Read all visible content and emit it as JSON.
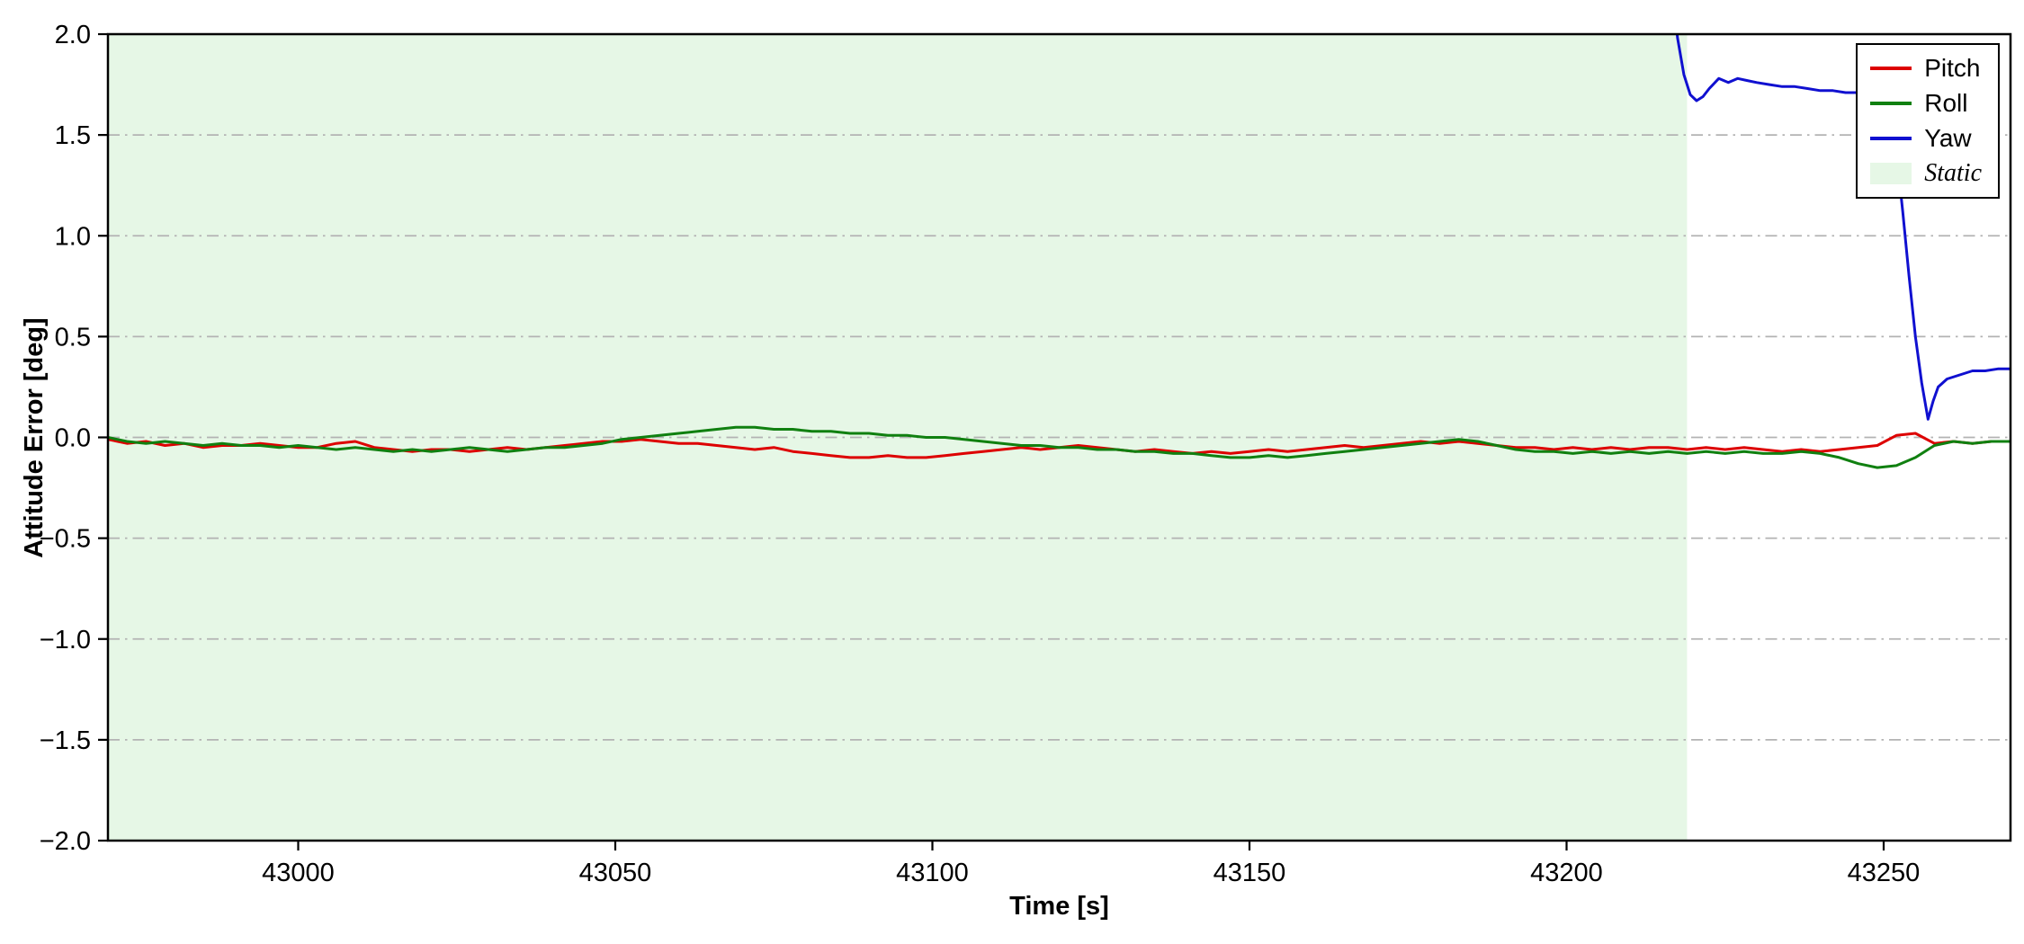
{
  "chart_data": {
    "type": "line",
    "title": "",
    "xlabel": "Time [s]",
    "ylabel": "Attitude Error [deg]",
    "xlim": [
      42970,
      43270
    ],
    "ylim": [
      -2.0,
      2.0
    ],
    "xticks": [
      43000,
      43050,
      43100,
      43150,
      43200,
      43250
    ],
    "yticks": [
      -2.0,
      -1.5,
      -1.0,
      -0.5,
      0.0,
      0.5,
      1.0,
      1.5,
      2.0
    ],
    "grid": {
      "axis": "y",
      "style": "dash-dot",
      "color": "#b3b3b3"
    },
    "legend_position": "upper right",
    "regions": [
      {
        "label": "Static",
        "x0": 42970,
        "x1": 43219,
        "color": "#e6f7e6"
      }
    ],
    "series": [
      {
        "name": "Pitch",
        "color": "#dd0000",
        "points": [
          [
            42970,
            -0.01
          ],
          [
            42973,
            -0.03
          ],
          [
            42976,
            -0.02
          ],
          [
            42979,
            -0.04
          ],
          [
            42982,
            -0.03
          ],
          [
            42985,
            -0.05
          ],
          [
            42988,
            -0.04
          ],
          [
            42991,
            -0.04
          ],
          [
            42994,
            -0.03
          ],
          [
            42997,
            -0.04
          ],
          [
            43000,
            -0.05
          ],
          [
            43003,
            -0.05
          ],
          [
            43006,
            -0.03
          ],
          [
            43009,
            -0.02
          ],
          [
            43012,
            -0.05
          ],
          [
            43015,
            -0.06
          ],
          [
            43018,
            -0.07
          ],
          [
            43021,
            -0.06
          ],
          [
            43024,
            -0.06
          ],
          [
            43027,
            -0.07
          ],
          [
            43030,
            -0.06
          ],
          [
            43033,
            -0.05
          ],
          [
            43036,
            -0.06
          ],
          [
            43039,
            -0.05
          ],
          [
            43042,
            -0.04
          ],
          [
            43045,
            -0.03
          ],
          [
            43048,
            -0.02
          ],
          [
            43051,
            -0.02
          ],
          [
            43054,
            -0.01
          ],
          [
            43057,
            -0.02
          ],
          [
            43060,
            -0.03
          ],
          [
            43063,
            -0.03
          ],
          [
            43066,
            -0.04
          ],
          [
            43069,
            -0.05
          ],
          [
            43072,
            -0.06
          ],
          [
            43075,
            -0.05
          ],
          [
            43078,
            -0.07
          ],
          [
            43081,
            -0.08
          ],
          [
            43084,
            -0.09
          ],
          [
            43087,
            -0.1
          ],
          [
            43090,
            -0.1
          ],
          [
            43093,
            -0.09
          ],
          [
            43096,
            -0.1
          ],
          [
            43099,
            -0.1
          ],
          [
            43102,
            -0.09
          ],
          [
            43105,
            -0.08
          ],
          [
            43108,
            -0.07
          ],
          [
            43111,
            -0.06
          ],
          [
            43114,
            -0.05
          ],
          [
            43117,
            -0.06
          ],
          [
            43120,
            -0.05
          ],
          [
            43123,
            -0.04
          ],
          [
            43126,
            -0.05
          ],
          [
            43129,
            -0.06
          ],
          [
            43132,
            -0.07
          ],
          [
            43135,
            -0.06
          ],
          [
            43138,
            -0.07
          ],
          [
            43141,
            -0.08
          ],
          [
            43144,
            -0.07
          ],
          [
            43147,
            -0.08
          ],
          [
            43150,
            -0.07
          ],
          [
            43153,
            -0.06
          ],
          [
            43156,
            -0.07
          ],
          [
            43159,
            -0.06
          ],
          [
            43162,
            -0.05
          ],
          [
            43165,
            -0.04
          ],
          [
            43168,
            -0.05
          ],
          [
            43171,
            -0.04
          ],
          [
            43174,
            -0.03
          ],
          [
            43177,
            -0.02
          ],
          [
            43180,
            -0.03
          ],
          [
            43183,
            -0.02
          ],
          [
            43186,
            -0.03
          ],
          [
            43189,
            -0.04
          ],
          [
            43192,
            -0.05
          ],
          [
            43195,
            -0.05
          ],
          [
            43198,
            -0.06
          ],
          [
            43201,
            -0.05
          ],
          [
            43204,
            -0.06
          ],
          [
            43207,
            -0.05
          ],
          [
            43210,
            -0.06
          ],
          [
            43213,
            -0.05
          ],
          [
            43216,
            -0.05
          ],
          [
            43219,
            -0.06
          ],
          [
            43222,
            -0.05
          ],
          [
            43225,
            -0.06
          ],
          [
            43228,
            -0.05
          ],
          [
            43231,
            -0.06
          ],
          [
            43234,
            -0.07
          ],
          [
            43237,
            -0.06
          ],
          [
            43240,
            -0.07
          ],
          [
            43243,
            -0.06
          ],
          [
            43246,
            -0.05
          ],
          [
            43249,
            -0.04
          ],
          [
            43252,
            0.01
          ],
          [
            43255,
            0.02
          ],
          [
            43258,
            -0.03
          ],
          [
            43261,
            -0.02
          ],
          [
            43264,
            -0.03
          ],
          [
            43267,
            -0.02
          ],
          [
            43270,
            -0.02
          ]
        ]
      },
      {
        "name": "Roll",
        "color": "#108010",
        "points": [
          [
            42970,
            0.0
          ],
          [
            42973,
            -0.02
          ],
          [
            42976,
            -0.03
          ],
          [
            42979,
            -0.02
          ],
          [
            42982,
            -0.03
          ],
          [
            42985,
            -0.04
          ],
          [
            42988,
            -0.03
          ],
          [
            42991,
            -0.04
          ],
          [
            42994,
            -0.04
          ],
          [
            42997,
            -0.05
          ],
          [
            43000,
            -0.04
          ],
          [
            43003,
            -0.05
          ],
          [
            43006,
            -0.06
          ],
          [
            43009,
            -0.05
          ],
          [
            43012,
            -0.06
          ],
          [
            43015,
            -0.07
          ],
          [
            43018,
            -0.06
          ],
          [
            43021,
            -0.07
          ],
          [
            43024,
            -0.06
          ],
          [
            43027,
            -0.05
          ],
          [
            43030,
            -0.06
          ],
          [
            43033,
            -0.07
          ],
          [
            43036,
            -0.06
          ],
          [
            43039,
            -0.05
          ],
          [
            43042,
            -0.05
          ],
          [
            43045,
            -0.04
          ],
          [
            43048,
            -0.03
          ],
          [
            43051,
            -0.01
          ],
          [
            43054,
            0.0
          ],
          [
            43057,
            0.01
          ],
          [
            43060,
            0.02
          ],
          [
            43063,
            0.03
          ],
          [
            43066,
            0.04
          ],
          [
            43069,
            0.05
          ],
          [
            43072,
            0.05
          ],
          [
            43075,
            0.04
          ],
          [
            43078,
            0.04
          ],
          [
            43081,
            0.03
          ],
          [
            43084,
            0.03
          ],
          [
            43087,
            0.02
          ],
          [
            43090,
            0.02
          ],
          [
            43093,
            0.01
          ],
          [
            43096,
            0.01
          ],
          [
            43099,
            0.0
          ],
          [
            43102,
            0.0
          ],
          [
            43105,
            -0.01
          ],
          [
            43108,
            -0.02
          ],
          [
            43111,
            -0.03
          ],
          [
            43114,
            -0.04
          ],
          [
            43117,
            -0.04
          ],
          [
            43120,
            -0.05
          ],
          [
            43123,
            -0.05
          ],
          [
            43126,
            -0.06
          ],
          [
            43129,
            -0.06
          ],
          [
            43132,
            -0.07
          ],
          [
            43135,
            -0.07
          ],
          [
            43138,
            -0.08
          ],
          [
            43141,
            -0.08
          ],
          [
            43144,
            -0.09
          ],
          [
            43147,
            -0.1
          ],
          [
            43150,
            -0.1
          ],
          [
            43153,
            -0.09
          ],
          [
            43156,
            -0.1
          ],
          [
            43159,
            -0.09
          ],
          [
            43162,
            -0.08
          ],
          [
            43165,
            -0.07
          ],
          [
            43168,
            -0.06
          ],
          [
            43171,
            -0.05
          ],
          [
            43174,
            -0.04
          ],
          [
            43177,
            -0.03
          ],
          [
            43180,
            -0.02
          ],
          [
            43183,
            -0.01
          ],
          [
            43186,
            -0.02
          ],
          [
            43189,
            -0.04
          ],
          [
            43192,
            -0.06
          ],
          [
            43195,
            -0.07
          ],
          [
            43198,
            -0.07
          ],
          [
            43201,
            -0.08
          ],
          [
            43204,
            -0.07
          ],
          [
            43207,
            -0.08
          ],
          [
            43210,
            -0.07
          ],
          [
            43213,
            -0.08
          ],
          [
            43216,
            -0.07
          ],
          [
            43219,
            -0.08
          ],
          [
            43222,
            -0.07
          ],
          [
            43225,
            -0.08
          ],
          [
            43228,
            -0.07
          ],
          [
            43231,
            -0.08
          ],
          [
            43234,
            -0.08
          ],
          [
            43237,
            -0.07
          ],
          [
            43240,
            -0.08
          ],
          [
            43243,
            -0.1
          ],
          [
            43246,
            -0.13
          ],
          [
            43249,
            -0.15
          ],
          [
            43252,
            -0.14
          ],
          [
            43255,
            -0.1
          ],
          [
            43258,
            -0.04
          ],
          [
            43261,
            -0.02
          ],
          [
            43264,
            -0.03
          ],
          [
            43267,
            -0.02
          ],
          [
            43270,
            -0.02
          ]
        ]
      },
      {
        "name": "Yaw",
        "color": "#1010d0",
        "points": [
          [
            43216,
            2.4
          ],
          [
            43217.5,
            1.98
          ],
          [
            43218.5,
            1.8
          ],
          [
            43219.5,
            1.7
          ],
          [
            43220.5,
            1.67
          ],
          [
            43221.5,
            1.69
          ],
          [
            43222.5,
            1.73
          ],
          [
            43224,
            1.78
          ],
          [
            43225.5,
            1.76
          ],
          [
            43227,
            1.78
          ],
          [
            43228.5,
            1.77
          ],
          [
            43230,
            1.76
          ],
          [
            43232,
            1.75
          ],
          [
            43234,
            1.74
          ],
          [
            43236,
            1.74
          ],
          [
            43238,
            1.73
          ],
          [
            43240,
            1.72
          ],
          [
            43242,
            1.72
          ],
          [
            43244,
            1.71
          ],
          [
            43246,
            1.71
          ],
          [
            43248,
            1.7
          ],
          [
            43250,
            1.69
          ],
          [
            43251,
            1.64
          ],
          [
            43252,
            1.42
          ],
          [
            43253,
            1.12
          ],
          [
            43254,
            0.8
          ],
          [
            43255,
            0.5
          ],
          [
            43256,
            0.27
          ],
          [
            43257,
            0.09
          ],
          [
            43257.8,
            0.18
          ],
          [
            43258.6,
            0.25
          ],
          [
            43260,
            0.29
          ],
          [
            43262,
            0.31
          ],
          [
            43264,
            0.33
          ],
          [
            43266,
            0.33
          ],
          [
            43268,
            0.34
          ],
          [
            43270,
            0.34
          ]
        ]
      }
    ],
    "legend": [
      {
        "label": "Pitch",
        "type": "line",
        "color": "#dd0000",
        "italic": false
      },
      {
        "label": "Roll",
        "type": "line",
        "color": "#108010",
        "italic": false
      },
      {
        "label": "Yaw",
        "type": "line",
        "color": "#1010d0",
        "italic": false
      },
      {
        "label": "Static",
        "type": "patch",
        "color": "#e6f7e6",
        "italic": true
      }
    ]
  }
}
